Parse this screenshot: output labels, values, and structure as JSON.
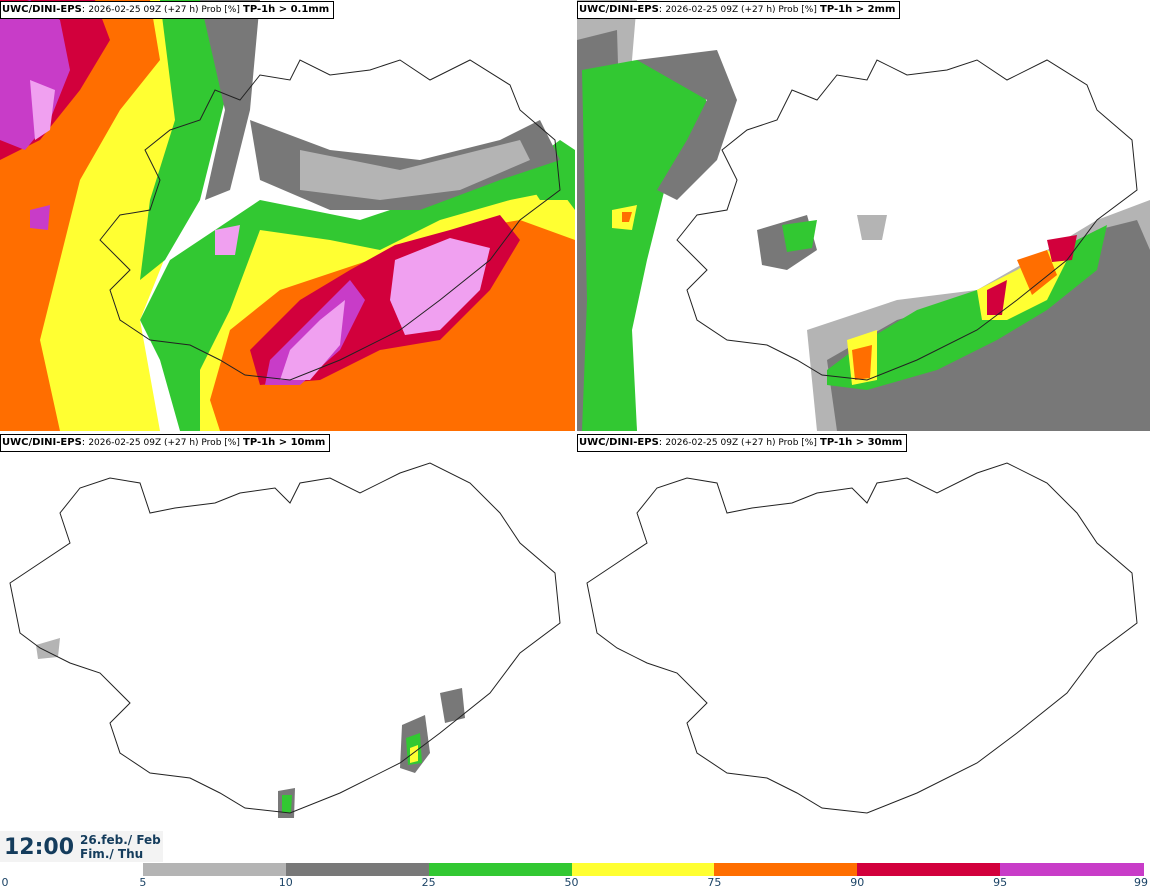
{
  "panels": [
    {
      "source": "UWC/DINI-EPS",
      "meta": "2026-02-25 09Z (+27 h) Prob [%]",
      "param": "TP-1h > 0.1mm"
    },
    {
      "source": "UWC/DINI-EPS",
      "meta": "2026-02-25 09Z (+27 h) Prob [%]",
      "param": "TP-1h > 2mm"
    },
    {
      "source": "UWC/DINI-EPS",
      "meta": "2026-02-25 09Z (+27 h) Prob [%]",
      "param": "TP-1h > 10mm"
    },
    {
      "source": "UWC/DINI-EPS",
      "meta": "2026-02-25 09Z (+27 h) Prob [%]",
      "param": "TP-1h > 30mm"
    }
  ],
  "valid_time": {
    "time": "12:00",
    "date_line1": "26.feb./ Feb",
    "date_line2": "Fim./ Thu"
  },
  "colorbar": {
    "ticks": [
      "0",
      "5",
      "10",
      "25",
      "50",
      "75",
      "90",
      "95",
      "99"
    ],
    "colors": [
      "#ffffff",
      "#b4b4b4",
      "#787878",
      "#32c832",
      "#ffff32",
      "#ff6e00",
      "#d2003c",
      "#c83cc8",
      "#f0a0f0"
    ]
  }
}
